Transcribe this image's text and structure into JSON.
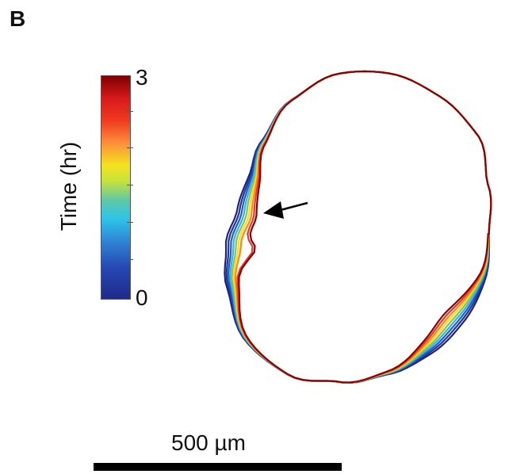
{
  "panel_label": "B",
  "colorbar": {
    "title": "Time (hr)",
    "max_label": "3",
    "min_label": "0",
    "colormap": "jet",
    "colors": [
      "#7f0000",
      "#d7191c",
      "#fd8d3c",
      "#f4e21f",
      "#5fc7a8",
      "#2ec4e8",
      "#2648b3",
      "#1f2a8a"
    ]
  },
  "scale_bar": {
    "label": "500 µm"
  },
  "outlines": {
    "count": 9,
    "colors": [
      "#1a237e",
      "#283593",
      "#1f5fbf",
      "#29b6f6",
      "#8bc34a",
      "#fdd835",
      "#fb8c00",
      "#e53935",
      "#8b0000"
    ]
  },
  "annotation": {
    "arrow_icon": "arrow-left-icon"
  }
}
